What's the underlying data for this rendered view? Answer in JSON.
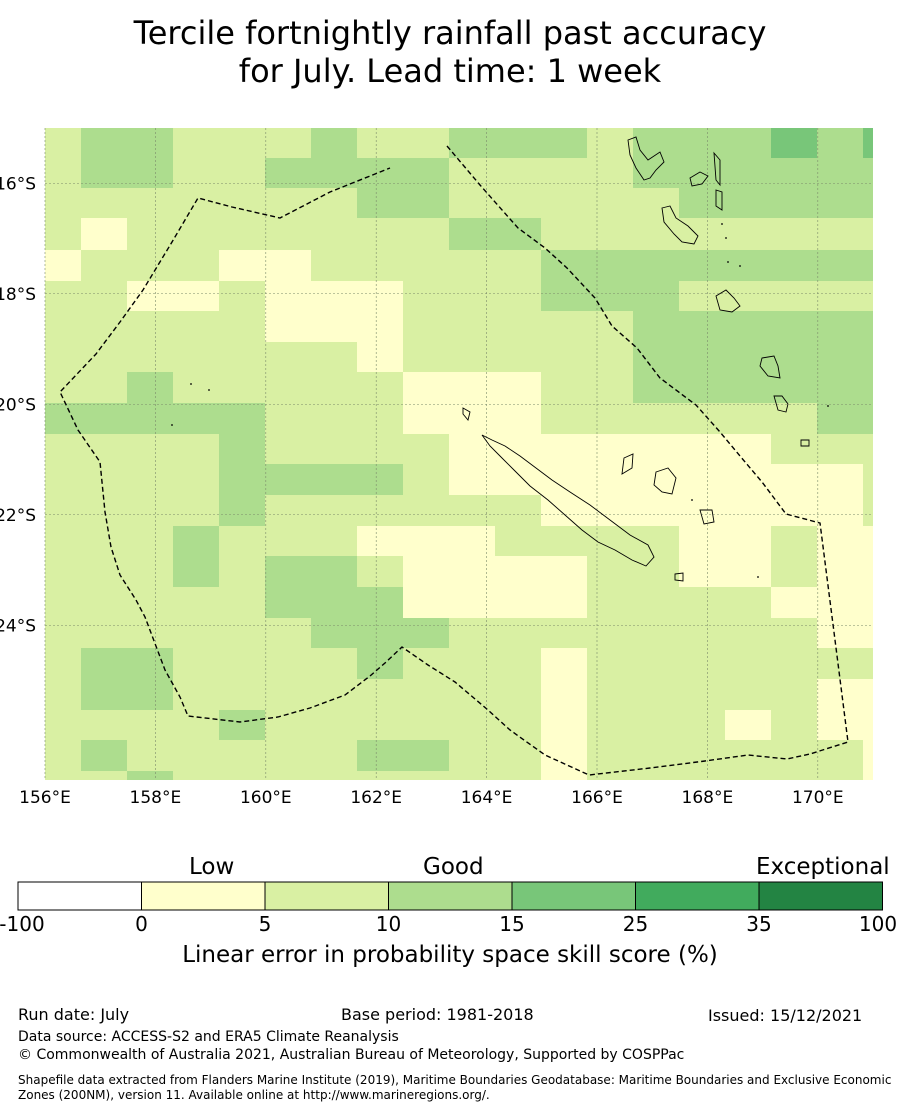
{
  "title": {
    "line1": "Tercile fortnightly rainfall past accuracy",
    "line2": "for July. Lead time: 1 week"
  },
  "map": {
    "lon_range": [
      156,
      171
    ],
    "lat_range": [
      -26.8,
      -15.0
    ],
    "lon_ticks": [
      "156°E",
      "158°E",
      "160°E",
      "162°E",
      "164°E",
      "166°E",
      "168°E",
      "170°E"
    ],
    "lat_ticks": [
      "16°S",
      "18°S",
      "20°S",
      "22°S",
      "24°S"
    ],
    "grid_lines": "on",
    "boundary_style": "dashed"
  },
  "colorbar": {
    "categories": [
      {
        "label": "Low"
      },
      {
        "label": "Good"
      },
      {
        "label": "Exceptional"
      }
    ],
    "ticks": [
      "-100",
      "0",
      "5",
      "10",
      "15",
      "25",
      "35",
      "100"
    ],
    "colors": [
      "#ffffff",
      "#ffffcc",
      "#d9f0a3",
      "#addd8e",
      "#78c679",
      "#41ab5d",
      "#238443"
    ],
    "label": "Linear error in probability space skill score (%)"
  },
  "footer": {
    "run_date": "Run date: July",
    "base_period": "Base period: 1981-2018",
    "issued": "Issued: 15/12/2021",
    "data_source": "Data source: ACCESS-S2 and ERA5 Climate Reanalysis",
    "copyright": "© Commonwealth of Australia 2021, Australian Bureau of Meteorology, Supported by COSPPac",
    "shapefile_line1": "Shapefile data extracted from Flanders Marine Institute (2019), Maritime Boundaries Geodatabase: Maritime Boundaries and Exclusive Economic",
    "shapefile_line2": "Zones (200NM), version 11. Available online at http://www.marineregions.org/."
  }
}
